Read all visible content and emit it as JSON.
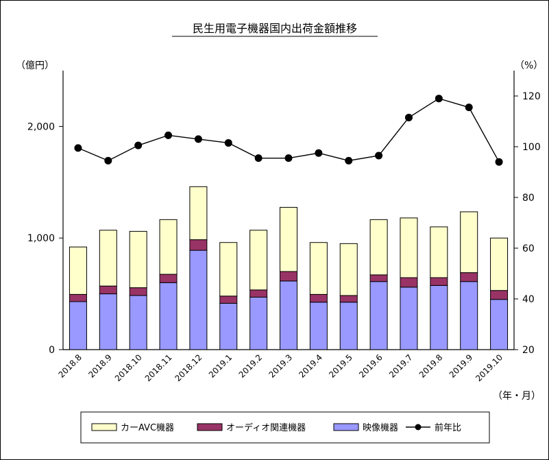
{
  "chart_data": {
    "type": "bar",
    "title": "民生用電子機器国内出荷金額推移",
    "left_unit": "（億円）",
    "right_unit": "（%）",
    "x_unit": "（年・月）",
    "categories": [
      "2018.8",
      "2018.9",
      "2018.10",
      "2018.11",
      "2018.12",
      "2019.1",
      "2019.2",
      "2019.3",
      "2019.4",
      "2019.5",
      "2019.6",
      "2019.7",
      "2019.8",
      "2019.9",
      "2019.10"
    ],
    "left_axis": {
      "min": 0,
      "max": 2500,
      "ticks": [
        0,
        1000,
        2000
      ],
      "tick_labels": [
        "0",
        "1,000",
        "2,000"
      ]
    },
    "right_axis": {
      "min": 20,
      "max": 130,
      "ticks": [
        20,
        40,
        60,
        80,
        100,
        120
      ],
      "tick_labels": [
        "20",
        "40",
        "60",
        "80",
        "100",
        "120"
      ]
    },
    "stacked": true,
    "series": [
      {
        "name": "映像機器",
        "axis": "left",
        "kind": "bar",
        "color": "#9999ff",
        "values": [
          430,
          500,
          485,
          600,
          890,
          415,
          470,
          615,
          425,
          425,
          610,
          560,
          575,
          610,
          450
        ]
      },
      {
        "name": "オーディオ関連機器",
        "axis": "left",
        "kind": "bar",
        "color": "#993366",
        "values": [
          65,
          70,
          70,
          75,
          95,
          65,
          65,
          85,
          70,
          60,
          60,
          85,
          70,
          80,
          80
        ]
      },
      {
        "name": "カーAVC機器",
        "axis": "left",
        "kind": "bar",
        "color": "#ffffcc",
        "values": [
          425,
          500,
          505,
          490,
          475,
          480,
          535,
          575,
          465,
          465,
          495,
          535,
          455,
          545,
          470
        ]
      },
      {
        "name": "前年比",
        "axis": "right",
        "kind": "line",
        "color": "#000000",
        "values": [
          99.5,
          94.5,
          100.5,
          104.5,
          103,
          101.5,
          95.5,
          95.5,
          97.5,
          94.5,
          96.5,
          111.5,
          119,
          115.5,
          94
        ]
      }
    ],
    "legend": {
      "placement": "bottom",
      "order": [
        "カーAVC機器",
        "オーディオ関連機器",
        "映像機器",
        "前年比"
      ]
    }
  }
}
